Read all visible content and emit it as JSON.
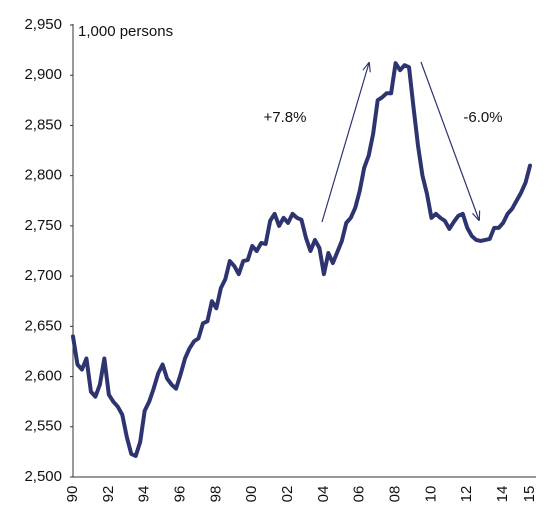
{
  "chart_data": {
    "type": "line",
    "unit_label": "1,000 persons",
    "annotations": [
      "+7.8%",
      "-6.0%"
    ],
    "categories": [
      "90",
      null,
      null,
      null,
      null,
      null,
      null,
      null,
      "92",
      null,
      null,
      null,
      null,
      null,
      null,
      null,
      "94",
      null,
      null,
      null,
      null,
      null,
      null,
      null,
      "96",
      null,
      null,
      null,
      null,
      null,
      null,
      null,
      "98",
      null,
      null,
      null,
      null,
      null,
      null,
      null,
      "00",
      null,
      null,
      null,
      null,
      null,
      null,
      null,
      "02",
      null,
      null,
      null,
      null,
      null,
      null,
      null,
      "04",
      null,
      null,
      null,
      null,
      null,
      null,
      null,
      "06",
      null,
      null,
      null,
      null,
      null,
      null,
      null,
      "08",
      null,
      null,
      null,
      null,
      null,
      null,
      null,
      "10",
      null,
      null,
      null,
      null,
      null,
      null,
      null,
      "12",
      null,
      null,
      null,
      null,
      null,
      null,
      null,
      "14",
      null,
      null,
      null,
      null,
      null,
      "15"
    ],
    "series": [
      {
        "color": "#2e3470",
        "values": [
          2640,
          2612,
          2607,
          2618,
          2585,
          2580,
          2592,
          2618,
          2582,
          2575,
          2570,
          2562,
          2540,
          2523,
          2521,
          2535,
          2566,
          2575,
          2588,
          2603,
          2612,
          2598,
          2592,
          2588,
          2602,
          2618,
          2628,
          2635,
          2638,
          2653,
          2655,
          2675,
          2668,
          2688,
          2697,
          2715,
          2710,
          2702,
          2715,
          2716,
          2730,
          2725,
          2733,
          2732,
          2755,
          2762,
          2750,
          2758,
          2753,
          2762,
          2758,
          2756,
          2738,
          2725,
          2736,
          2728,
          2702,
          2723,
          2713,
          2724,
          2735,
          2753,
          2758,
          2768,
          2785,
          2808,
          2820,
          2842,
          2875,
          2878,
          2882,
          2882,
          2912,
          2905,
          2910,
          2908,
          2868,
          2830,
          2800,
          2782,
          2758,
          2762,
          2758,
          2755,
          2747,
          2754,
          2760,
          2762,
          2748,
          2740,
          2736,
          2735,
          2736,
          2737,
          2748,
          2748,
          2753,
          2762,
          2767,
          2775,
          2783,
          2793,
          2810
        ]
      }
    ],
    "ylim": [
      2500,
      2950
    ],
    "yticks": [
      {
        "value": 2500,
        "label": "2,500"
      },
      {
        "value": 2550,
        "label": "2,550"
      },
      {
        "value": 2600,
        "label": "2,600"
      },
      {
        "value": 2650,
        "label": "2,650"
      },
      {
        "value": 2700,
        "label": "2,700"
      },
      {
        "value": 2750,
        "label": "2,750"
      },
      {
        "value": 2800,
        "label": "2,800"
      },
      {
        "value": 2850,
        "label": "2,850"
      },
      {
        "value": 2900,
        "label": "2,900"
      },
      {
        "value": 2950,
        "label": "2,950"
      }
    ],
    "grid": false
  }
}
